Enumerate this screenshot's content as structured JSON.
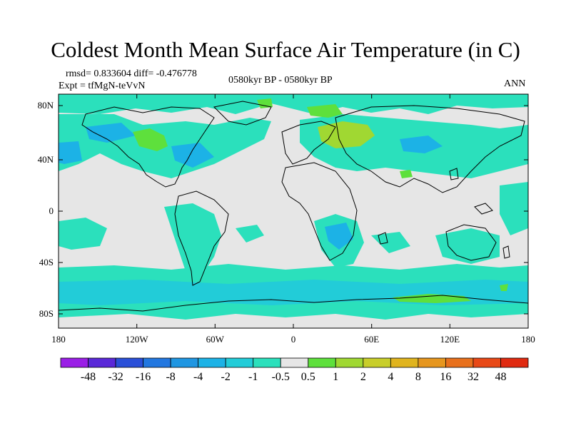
{
  "title": "Coldest Month Mean Surface Air Temperature (in C)",
  "stats": "rmsd= 0.833604 diff= -0.476778",
  "expt": "Expt = tfMgN-teVvN",
  "period": "0580kyr BP - 0580kyr BP",
  "season": "ANN",
  "lat_ticks": [
    "80N",
    "40N",
    "0",
    "40S",
    "80S"
  ],
  "lon_ticks": [
    "180",
    "120W",
    "60W",
    "0",
    "60E",
    "120E",
    "180"
  ],
  "colorbar": {
    "labels": [
      "-48",
      "-32",
      "-16",
      "-8",
      "-4",
      "-2",
      "-1",
      "-0.5",
      "0.5",
      "1",
      "2",
      "4",
      "8",
      "16",
      "32",
      "48"
    ],
    "colors": [
      "#9a1ee6",
      "#5a28d8",
      "#2a4fd8",
      "#2277e0",
      "#1f96e2",
      "#1cb2e6",
      "#22ccd8",
      "#2be0bc",
      "#e6e6e6",
      "#5ee03c",
      "#a0d832",
      "#c8ce2a",
      "#e0b41e",
      "#e6961e",
      "#e8701c",
      "#e84816",
      "#e02a10"
    ]
  },
  "map": {
    "background_color": "#e6e6e6",
    "cool_light": "#2be0bc",
    "cool_mid": "#22ccd8",
    "cool_dark": "#1cb2e6",
    "cool_darker": "#1f96e2",
    "warm_light": "#5ee03c",
    "warm_mid": "#a0d832"
  }
}
